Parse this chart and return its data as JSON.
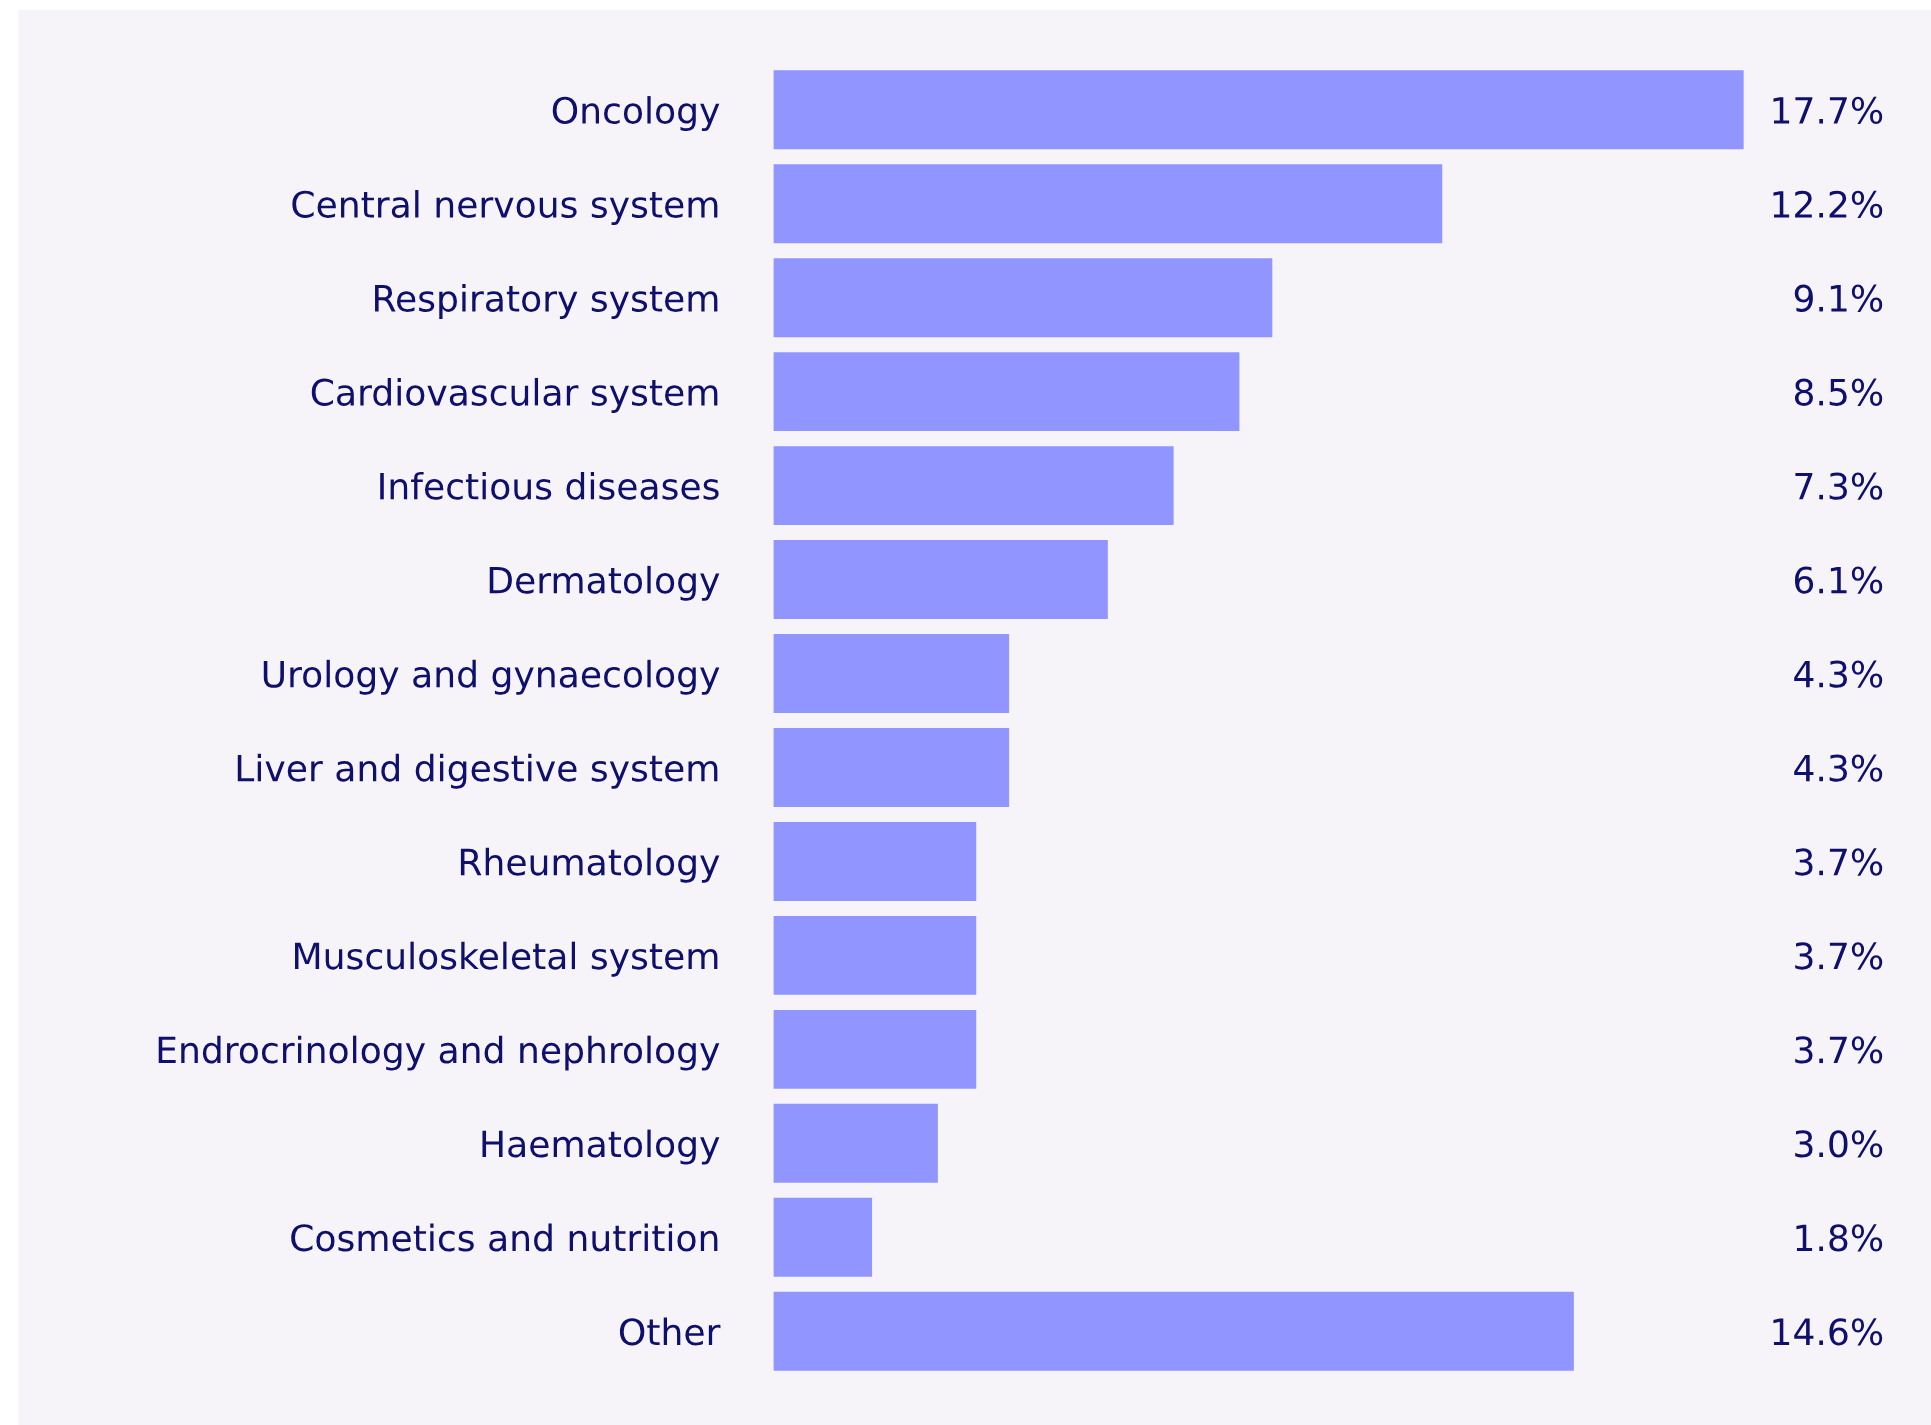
{
  "chart_data": {
    "type": "bar",
    "orientation": "horizontal",
    "categories": [
      "Oncology",
      "Central nervous system",
      "Respiratory system",
      "Cardiovascular system",
      "Infectious diseases",
      "Dermatology",
      "Urology and gynaecology",
      "Liver and digestive system",
      "Rheumatology",
      "Musculoskeletal system",
      "Endrocrinology and nephrology",
      "Haematology",
      "Cosmetics and nutrition",
      "Other"
    ],
    "values": [
      17.7,
      12.2,
      9.1,
      8.5,
      7.3,
      6.1,
      4.3,
      4.3,
      3.7,
      3.7,
      3.7,
      3.0,
      1.8,
      14.6
    ],
    "value_labels": [
      "17.7%",
      "12.2%",
      "9.1%",
      "8.5%",
      "7.3%",
      "6.1%",
      "4.3%",
      "4.3%",
      "3.7%",
      "3.7%",
      "3.7%",
      "3.0%",
      "1.8%",
      "14.6%"
    ],
    "color": "#9095ff",
    "grid": false,
    "legend": false
  }
}
